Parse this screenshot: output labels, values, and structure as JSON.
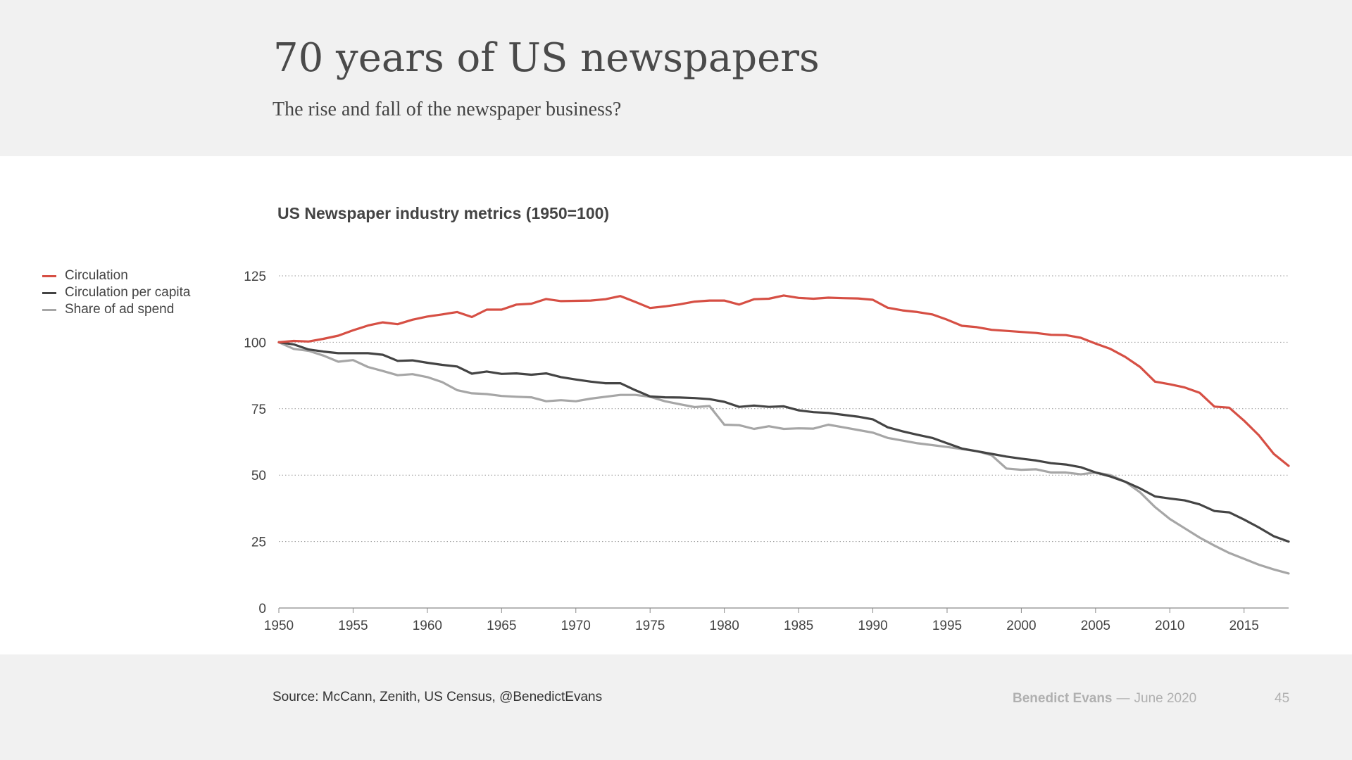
{
  "header": {
    "title": "70 years of US newspapers",
    "subtitle": "The rise and fall of the newspaper business?"
  },
  "footer": {
    "source": "Source: McCann, Zenith, US Census, @BenedictEvans",
    "author": "Benedict Evans",
    "separator": "—",
    "date": "June 2020",
    "page_number": "45"
  },
  "chart_data": {
    "type": "line",
    "title": "US Newspaper industry metrics (1950=100)",
    "xlabel": "",
    "ylabel": "",
    "xlim": [
      1950,
      2018
    ],
    "ylim": [
      0,
      125
    ],
    "x_ticks": [
      1950,
      1955,
      1960,
      1965,
      1970,
      1975,
      1980,
      1985,
      1990,
      1995,
      2000,
      2005,
      2010,
      2015
    ],
    "y_ticks": [
      0,
      25,
      50,
      75,
      100,
      125
    ],
    "grid": "horizontal-dotted",
    "legend_position": "top-left",
    "colors": {
      "Circulation": "#d64f44",
      "Circulation per capita": "#444444",
      "Share of ad spend": "#a6a6a6"
    },
    "x": [
      1950,
      1951,
      1952,
      1953,
      1954,
      1955,
      1956,
      1957,
      1958,
      1959,
      1960,
      1961,
      1962,
      1963,
      1964,
      1965,
      1966,
      1967,
      1968,
      1969,
      1970,
      1971,
      1972,
      1973,
      1974,
      1975,
      1976,
      1977,
      1978,
      1979,
      1980,
      1981,
      1982,
      1983,
      1984,
      1985,
      1986,
      1987,
      1988,
      1989,
      1990,
      1991,
      1992,
      1993,
      1994,
      1995,
      1996,
      1997,
      1998,
      1999,
      2000,
      2001,
      2002,
      2003,
      2004,
      2005,
      2006,
      2007,
      2008,
      2009,
      2010,
      2011,
      2012,
      2013,
      2014,
      2015,
      2016,
      2017,
      2018
    ],
    "series": [
      {
        "name": "Circulation",
        "values": [
          100,
          100.5,
          100.3,
          101.3,
          102.5,
          104.5,
          106.3,
          107.5,
          106.8,
          108.5,
          109.7,
          110.5,
          111.4,
          109.5,
          112.3,
          112.3,
          114.2,
          114.5,
          116.3,
          115.5,
          115.6,
          115.7,
          116.2,
          117.4,
          115.2,
          112.9,
          113.5,
          114.3,
          115.3,
          115.7,
          115.7,
          114.2,
          116.2,
          116.4,
          117.6,
          116.7,
          116.4,
          116.8,
          116.6,
          116.5,
          116,
          113,
          112,
          111.4,
          110.5,
          108.5,
          106.2,
          105.7,
          104.7,
          104.3,
          103.9,
          103.5,
          102.8,
          102.7,
          101.7,
          99.5,
          97.5,
          94.5,
          90.7,
          85.2,
          84.2,
          83,
          81,
          75.8,
          75.4,
          70.5,
          65,
          58,
          53.5
        ]
      },
      {
        "name": "Circulation per capita",
        "values": [
          100,
          99.2,
          97.3,
          96.5,
          95.9,
          95.9,
          95.9,
          95.3,
          93,
          93.2,
          92.3,
          91.5,
          90.9,
          88.2,
          89,
          88.1,
          88.3,
          87.8,
          88.3,
          86.9,
          86,
          85.2,
          84.6,
          84.6,
          82,
          79.6,
          79.3,
          79.2,
          79,
          78.6,
          77.6,
          75.7,
          76.2,
          75.7,
          75.9,
          74.4,
          73.7,
          73.4,
          72.7,
          72,
          71,
          68,
          66.5,
          65.2,
          64,
          62,
          60,
          59,
          58,
          57,
          56.2,
          55.5,
          54.5,
          54,
          53,
          51,
          49.5,
          47.5,
          45,
          42,
          41.2,
          40.5,
          39,
          36.5,
          36,
          33.3,
          30.3,
          27,
          25
        ]
      },
      {
        "name": "Share of ad spend",
        "values": [
          100,
          97.5,
          96.8,
          95,
          92.7,
          93.3,
          90.7,
          89.2,
          87.6,
          88,
          86.9,
          85,
          82,
          80.8,
          80.5,
          79.8,
          79.5,
          79.3,
          77.8,
          78.2,
          77.8,
          78.8,
          79.5,
          80.2,
          80.2,
          79.5,
          77.8,
          76.7,
          75.6,
          76,
          69,
          68.8,
          67.4,
          68.4,
          67.4,
          67.6,
          67.5,
          69,
          68,
          67,
          66,
          64,
          63,
          62,
          61.3,
          60.6,
          59.8,
          59,
          57.5,
          52.5,
          52,
          52.2,
          51,
          51,
          50.3,
          51,
          50,
          47.5,
          43.5,
          38,
          33.5,
          30,
          26.5,
          23.5,
          20.7,
          18.5,
          16.3,
          14.5,
          13
        ]
      }
    ]
  }
}
